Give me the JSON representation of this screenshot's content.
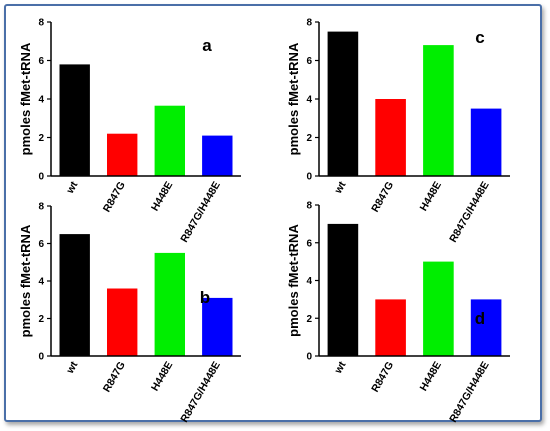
{
  "chart_data": [
    {
      "type": "bar",
      "panel": "a",
      "ylabel": "pmoles fMet-tRNA",
      "ylim": [
        0,
        8
      ],
      "yticks": [
        0,
        2,
        4,
        6,
        8
      ],
      "categories": [
        "wt",
        "R847G",
        "H448E",
        "R847G/H448E"
      ],
      "values": [
        5.8,
        2.2,
        3.65,
        2.1
      ],
      "colors": [
        "#000000",
        "#ff0000",
        "#00ee00",
        "#0000ff"
      ]
    },
    {
      "type": "bar",
      "panel": "b",
      "ylabel": "pmoles fMet-tRNA",
      "ylim": [
        0,
        8
      ],
      "yticks": [
        0,
        2,
        4,
        6,
        8
      ],
      "categories": [
        "wt",
        "R847G",
        "H448E",
        "R847G/H448E"
      ],
      "values": [
        6.5,
        3.6,
        5.5,
        3.1
      ],
      "colors": [
        "#000000",
        "#ff0000",
        "#00ee00",
        "#0000ff"
      ]
    },
    {
      "type": "bar",
      "panel": "c",
      "ylabel": "pmoles fMet-tRNA",
      "ylim": [
        0,
        8
      ],
      "yticks": [
        0,
        2,
        4,
        6,
        8
      ],
      "categories": [
        "wt",
        "R847G",
        "H448E",
        "R847G/H448E"
      ],
      "values": [
        7.5,
        4.0,
        6.8,
        3.5
      ],
      "colors": [
        "#000000",
        "#ff0000",
        "#00ee00",
        "#0000ff"
      ]
    },
    {
      "type": "bar",
      "panel": "d",
      "ylabel": "pmoles fMet-tRNA",
      "ylim": [
        0,
        8
      ],
      "yticks": [
        0,
        2,
        4,
        6,
        8
      ],
      "categories": [
        "wt",
        "R847G",
        "H448E",
        "R847G/H448E"
      ],
      "values": [
        7.0,
        3.0,
        5.0,
        3.0
      ],
      "colors": [
        "#000000",
        "#ff0000",
        "#00ee00",
        "#0000ff"
      ]
    }
  ]
}
